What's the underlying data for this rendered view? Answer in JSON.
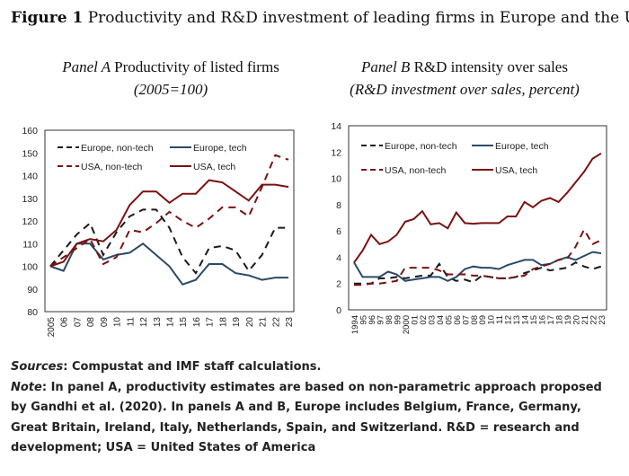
{
  "figure_label": "Figure 1",
  "figure_title": "Productivity and R&D investment of leading firms in Europe and the US",
  "colors": {
    "europe": "#2b4a66",
    "europe_nontech": "#1a1a1a",
    "usa": "#7a1212",
    "usa_nontech": "#7a1212"
  },
  "chart_data": [
    {
      "type": "line",
      "panel": "Panel A",
      "title": "Productivity of listed firms",
      "subtitle": "(2005=100)",
      "categories": [
        "2005",
        "06",
        "07",
        "08",
        "09",
        "10",
        "11",
        "12",
        "13",
        "14",
        "15",
        "16",
        "17",
        "18",
        "19",
        "20",
        "21",
        "22",
        "23"
      ],
      "ylim": [
        80,
        160
      ],
      "yticks": [
        80,
        90,
        100,
        110,
        120,
        130,
        140,
        150,
        160
      ],
      "legend": "top-left",
      "series": [
        {
          "name": "Europe, non-tech",
          "style": "dash",
          "color": "#1a1a1a",
          "values": [
            100,
            107,
            114,
            119,
            105,
            115,
            122,
            125,
            125,
            117,
            104,
            97,
            108,
            109,
            107,
            98,
            105,
            117,
            117
          ]
        },
        {
          "name": "Europe, tech",
          "style": "solid",
          "color": "#2b4a66",
          "values": [
            100,
            98,
            110,
            110,
            103,
            105,
            106,
            110,
            105,
            100,
            92,
            94,
            101,
            101,
            97,
            96,
            94,
            95,
            95
          ]
        },
        {
          "name": "USA, non-tech",
          "style": "dash",
          "color": "#7a1212",
          "values": [
            100,
            104,
            108,
            112,
            101,
            104,
            116,
            115,
            119,
            124,
            120,
            117,
            121,
            126,
            126,
            122,
            135,
            149,
            147
          ]
        },
        {
          "name": "USA, tech",
          "style": "solid",
          "color": "#7a1212",
          "values": [
            100,
            102,
            110,
            112,
            111,
            116,
            127,
            133,
            133,
            128,
            132,
            132,
            138,
            137,
            133,
            129,
            136,
            136,
            135
          ]
        }
      ]
    },
    {
      "type": "line",
      "panel": "Panel B",
      "title": "R&D intensity over sales",
      "subtitle": "(R&D investment over sales, percent)",
      "categories": [
        "1994",
        "95",
        "96",
        "97",
        "98",
        "99",
        "2000",
        "01",
        "02",
        "03",
        "04",
        "05",
        "06",
        "07",
        "08",
        "09",
        "10",
        "11",
        "12",
        "13",
        "14",
        "15",
        "16",
        "17",
        "18",
        "19",
        "20",
        "21",
        "22",
        "23"
      ],
      "ylim": [
        0,
        14
      ],
      "yticks": [
        0,
        2,
        4,
        6,
        8,
        10,
        12,
        14
      ],
      "legend": "top-left",
      "series": [
        {
          "name": "Europe, non-tech",
          "style": "dash",
          "color": "#1a1a1a",
          "values": [
            2.0,
            2.0,
            2.0,
            2.4,
            2.4,
            2.5,
            2.4,
            2.5,
            2.6,
            2.6,
            3.5,
            2.5,
            2.2,
            2.3,
            2.1,
            2.6,
            2.5,
            2.4,
            2.4,
            2.5,
            2.8,
            3.0,
            3.2,
            3.0,
            3.1,
            3.2,
            3.6,
            3.3,
            3.1,
            3.3
          ]
        },
        {
          "name": "Europe, tech",
          "style": "solid",
          "color": "#2b4a66",
          "values": [
            3.6,
            2.5,
            2.5,
            2.5,
            2.9,
            2.7,
            2.2,
            2.3,
            2.4,
            2.5,
            2.5,
            2.2,
            2.5,
            3.1,
            3.3,
            3.2,
            3.2,
            3.1,
            3.4,
            3.6,
            3.8,
            3.8,
            3.4,
            3.5,
            3.8,
            4.0,
            3.8,
            4.1,
            4.4,
            4.3
          ]
        },
        {
          "name": "USA, non-tech",
          "style": "dash",
          "color": "#7a1212",
          "values": [
            1.9,
            1.9,
            2.0,
            2.0,
            2.1,
            2.2,
            3.2,
            3.2,
            3.2,
            3.2,
            3.0,
            2.7,
            2.7,
            2.7,
            2.6,
            2.6,
            2.5,
            2.4,
            2.4,
            2.5,
            2.6,
            3.1,
            3.3,
            3.5,
            3.8,
            3.9,
            4.8,
            6.1,
            5.0,
            5.3
          ]
        },
        {
          "name": "USA, tech",
          "style": "solid",
          "color": "#7a1212",
          "values": [
            3.6,
            4.5,
            5.7,
            5.0,
            5.2,
            5.7,
            6.7,
            6.9,
            7.5,
            6.5,
            6.6,
            6.2,
            7.4,
            6.6,
            6.55,
            6.6,
            6.6,
            6.6,
            7.1,
            7.1,
            8.2,
            7.8,
            8.3,
            8.5,
            8.2,
            8.9,
            9.7,
            10.5,
            11.5,
            11.9
          ]
        }
      ]
    }
  ],
  "notes": {
    "sources_label": "Sources",
    "sources_text": ": Compustat and IMF staff calculations.",
    "note_label": "Note",
    "note_text": ": In panel A, productivity estimates are based on non-parametric approach proposed by Gandhi et al. (2020). In panels A and B, Europe includes Belgium, France, Germany, Great Britain, Ireland, Italy, Netherlands, Spain, and Switzerland. R&D = research and development; USA = United States of America"
  }
}
